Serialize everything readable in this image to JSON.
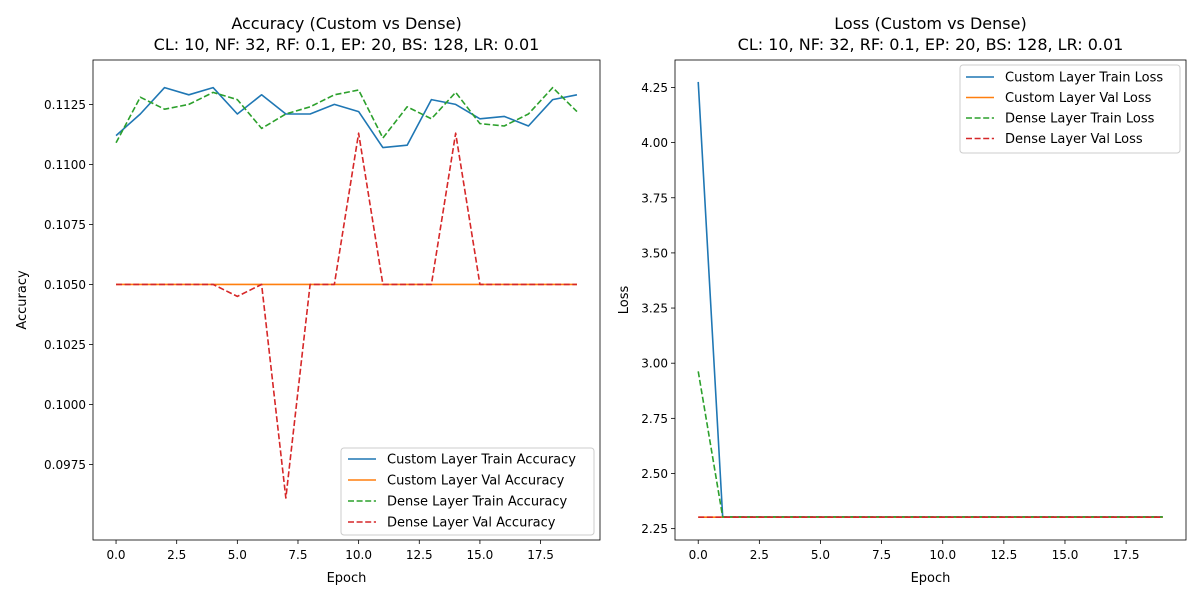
{
  "chart_data": [
    {
      "type": "line",
      "title": "Accuracy (Custom vs Dense)",
      "subtitle": "CL: 10, NF: 32, RF: 0.1, EP: 20, BS: 128, LR: 0.01",
      "xlabel": "Epoch",
      "ylabel": "Accuracy",
      "xlim": [
        -0.95,
        19.95
      ],
      "ylim": [
        0.09435,
        0.11435
      ],
      "xticks": [
        0.0,
        2.5,
        5.0,
        7.5,
        10.0,
        12.5,
        15.0,
        17.5
      ],
      "xtick_labels": [
        "0.0",
        "2.5",
        "5.0",
        "7.5",
        "10.0",
        "12.5",
        "15.0",
        "17.5"
      ],
      "yticks": [
        0.0975,
        0.1,
        0.1025,
        0.105,
        0.1075,
        0.11,
        0.1125
      ],
      "ytick_labels": [
        "0.0975",
        "0.1000",
        "0.1025",
        "0.1050",
        "0.1075",
        "0.1100",
        "0.1125"
      ],
      "grid": false,
      "legend_position": "lower-right",
      "x": [
        0,
        1,
        2,
        3,
        4,
        5,
        6,
        7,
        8,
        9,
        10,
        11,
        12,
        13,
        14,
        15,
        16,
        17,
        18,
        19
      ],
      "series": [
        {
          "name": "Custom Layer Train Accuracy",
          "color": "#1f77b4",
          "dash": "solid",
          "values": [
            0.1112,
            0.1121,
            0.1132,
            0.1129,
            0.1132,
            0.1121,
            0.1129,
            0.1121,
            0.1121,
            0.1125,
            0.1122,
            0.1107,
            0.1108,
            0.1127,
            0.1125,
            0.1119,
            0.112,
            0.1116,
            0.1127,
            0.1129
          ]
        },
        {
          "name": "Custom Layer Val Accuracy",
          "color": "#ff7f0e",
          "dash": "solid",
          "values": [
            0.105,
            0.105,
            0.105,
            0.105,
            0.105,
            0.105,
            0.105,
            0.105,
            0.105,
            0.105,
            0.105,
            0.105,
            0.105,
            0.105,
            0.105,
            0.105,
            0.105,
            0.105,
            0.105,
            0.105
          ]
        },
        {
          "name": "Dense Layer Train Accuracy",
          "color": "#2ca02c",
          "dash": "dashed",
          "values": [
            0.1109,
            0.1128,
            0.1123,
            0.1125,
            0.113,
            0.1127,
            0.1115,
            0.1121,
            0.1124,
            0.1129,
            0.1131,
            0.1111,
            0.1124,
            0.1119,
            0.113,
            0.1117,
            0.1116,
            0.1121,
            0.1132,
            0.1122
          ]
        },
        {
          "name": "Dense Layer Val Accuracy",
          "color": "#d62728",
          "dash": "dashed",
          "values": [
            0.105,
            0.105,
            0.105,
            0.105,
            0.105,
            0.1045,
            0.105,
            0.0961,
            0.105,
            0.105,
            0.1113,
            0.105,
            0.105,
            0.105,
            0.1113,
            0.105,
            0.105,
            0.105,
            0.105,
            0.105
          ]
        }
      ]
    },
    {
      "type": "line",
      "title": "Loss (Custom vs Dense)",
      "subtitle": "CL: 10, NF: 32, RF: 0.1, EP: 20, BS: 128, LR: 0.01",
      "xlabel": "Epoch",
      "ylabel": "Loss",
      "xlim": [
        -0.95,
        19.95
      ],
      "ylim": [
        2.1985,
        4.3745
      ],
      "xticks": [
        0.0,
        2.5,
        5.0,
        7.5,
        10.0,
        12.5,
        15.0,
        17.5
      ],
      "xtick_labels": [
        "0.0",
        "2.5",
        "5.0",
        "7.5",
        "10.0",
        "12.5",
        "15.0",
        "17.5"
      ],
      "yticks": [
        2.25,
        2.5,
        2.75,
        3.0,
        3.25,
        3.5,
        3.75,
        4.0,
        4.25
      ],
      "ytick_labels": [
        "2.25",
        "2.50",
        "2.75",
        "3.00",
        "3.25",
        "3.50",
        "3.75",
        "4.00",
        "4.25"
      ],
      "grid": false,
      "legend_position": "upper-right",
      "x": [
        0,
        1,
        2,
        3,
        4,
        5,
        6,
        7,
        8,
        9,
        10,
        11,
        12,
        13,
        14,
        15,
        16,
        17,
        18,
        19
      ],
      "series": [
        {
          "name": "Custom Layer Train Loss",
          "color": "#1f77b4",
          "dash": "solid",
          "values": [
            4.275,
            2.303,
            2.303,
            2.303,
            2.303,
            2.303,
            2.303,
            2.303,
            2.303,
            2.303,
            2.303,
            2.303,
            2.303,
            2.303,
            2.303,
            2.303,
            2.303,
            2.303,
            2.303,
            2.303
          ]
        },
        {
          "name": "Custom Layer Val Loss",
          "color": "#ff7f0e",
          "dash": "solid",
          "values": [
            2.302,
            2.302,
            2.302,
            2.302,
            2.302,
            2.302,
            2.302,
            2.302,
            2.302,
            2.302,
            2.302,
            2.302,
            2.302,
            2.302,
            2.302,
            2.302,
            2.302,
            2.302,
            2.302,
            2.302
          ]
        },
        {
          "name": "Dense Layer Train Loss",
          "color": "#2ca02c",
          "dash": "dashed",
          "values": [
            2.963,
            2.303,
            2.303,
            2.303,
            2.303,
            2.303,
            2.303,
            2.303,
            2.303,
            2.303,
            2.303,
            2.303,
            2.303,
            2.303,
            2.303,
            2.303,
            2.303,
            2.303,
            2.303,
            2.303
          ]
        },
        {
          "name": "Dense Layer Val Loss",
          "color": "#d62728",
          "dash": "dashed",
          "values": [
            2.302,
            2.302,
            2.302,
            2.302,
            2.302,
            2.302,
            2.302,
            2.302,
            2.302,
            2.302,
            2.302,
            2.302,
            2.302,
            2.302,
            2.302,
            2.302,
            2.302,
            2.302,
            2.302,
            2.302
          ]
        }
      ]
    }
  ]
}
